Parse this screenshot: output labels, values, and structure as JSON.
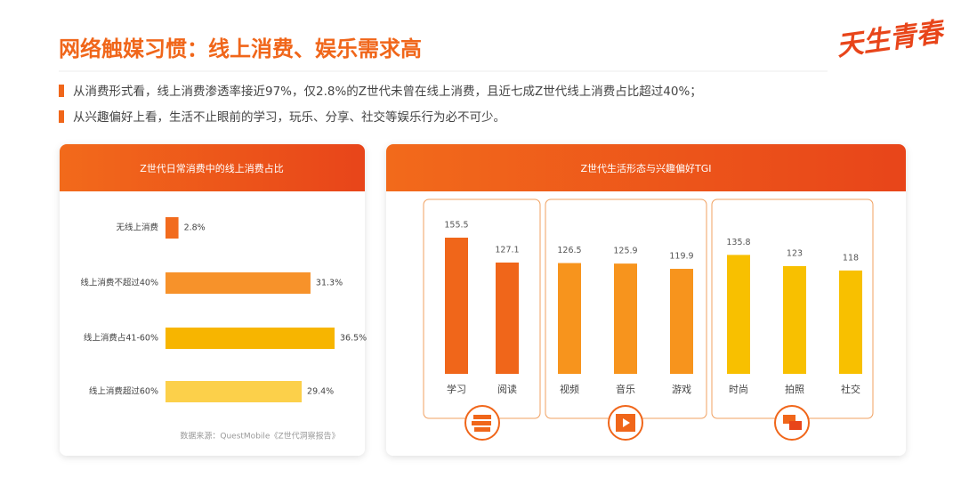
{
  "header": {
    "title": "网络触媒习惯：线上消费、娱乐需求高",
    "logo": "天生青春",
    "bullets": [
      "从消费形式看，线上消费渗透率接近97%，仅2.8%的Z世代未曾在线上消费，且近七成Z世代线上消费占比超过40%；",
      "从兴趣偏好上看，生活不止眼前的学习，玩乐、分享、社交等娱乐行为必不可少。"
    ]
  },
  "chart_data": [
    {
      "type": "bar",
      "orientation": "horizontal",
      "title": "Z世代日常消费中的线上消费占比",
      "categories": [
        "无线上消费",
        "线上消费不超过40%",
        "线上消费占41-60%",
        "线上消费超过60%"
      ],
      "values": [
        2.8,
        31.3,
        36.5,
        29.4
      ],
      "value_labels": [
        "2.8%",
        "31.3%",
        "36.5%",
        "29.4%"
      ],
      "colors": [
        "#f26b1d",
        "#f7922a",
        "#f7b500",
        "#fcd04a"
      ],
      "source": "数据来源：QuestMobile《Z世代洞察报告》"
    },
    {
      "type": "bar",
      "orientation": "vertical",
      "title": "Z世代生活形态与兴趣偏好TGI",
      "categories": [
        "学习",
        "阅读",
        "视频",
        "音乐",
        "游戏",
        "时尚",
        "拍照",
        "社交"
      ],
      "values": [
        155.5,
        127.1,
        126.5,
        125.9,
        119.9,
        135.8,
        123,
        118
      ],
      "colors": [
        "#f0661a",
        "#f0661a",
        "#f7941d",
        "#f7941d",
        "#f7941d",
        "#f8c000",
        "#f8c000",
        "#f8c000"
      ]
    }
  ]
}
